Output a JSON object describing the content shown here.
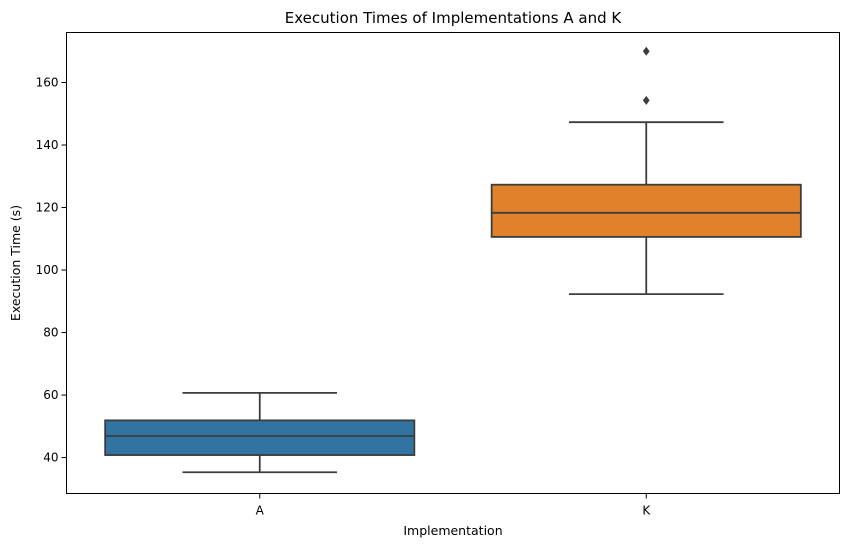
{
  "chart_data": {
    "type": "box",
    "title": "Execution Times of Implementations A and K",
    "xlabel": "Implementation",
    "ylabel": "Execution Time (s)",
    "ylim": [
      28.5,
      176
    ],
    "yticks": [
      40,
      60,
      80,
      100,
      120,
      140,
      160
    ],
    "categories": [
      "A",
      "K"
    ],
    "boxes": [
      {
        "category": "A",
        "whisker_low": 35.3,
        "q1": 40.8,
        "median": 46.9,
        "q3": 51.9,
        "whisker_high": 60.7,
        "outliers": [],
        "color": "#3274a1"
      },
      {
        "category": "K",
        "whisker_low": 92.3,
        "q1": 110.6,
        "median": 118.3,
        "q3": 127.3,
        "whisker_high": 147.3,
        "outliers": [
          154.3,
          170.0
        ],
        "color": "#e1812c"
      }
    ],
    "grid": false,
    "legend": "none"
  }
}
